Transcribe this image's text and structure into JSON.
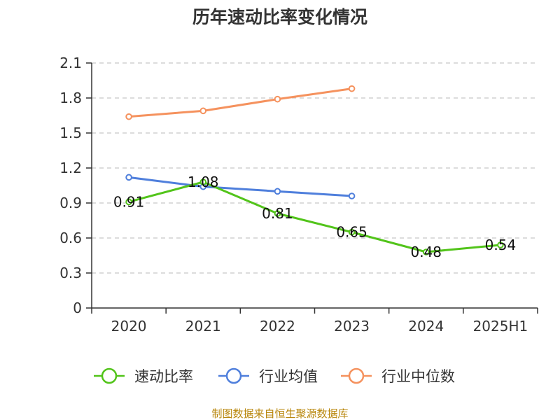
{
  "chart_data": {
    "type": "line",
    "title": "历年速动比率变化情况",
    "categories": [
      "2020",
      "2021",
      "2022",
      "2023",
      "2024",
      "2025H1"
    ],
    "ylim": [
      0,
      2.1
    ],
    "yticks": [
      "0",
      "0.3",
      "0.6",
      "0.9",
      "1.2",
      "1.5",
      "1.8",
      "2.1"
    ],
    "grid": true,
    "legend_position": "bottom",
    "series": [
      {
        "name": "速动比率",
        "color": "#52c41a",
        "values": [
          0.91,
          1.08,
          0.81,
          0.65,
          0.48,
          0.54
        ],
        "labels": [
          "0.91",
          "1.08",
          "0.81",
          "0.65",
          "0.48",
          "0.54"
        ],
        "show_labels": true
      },
      {
        "name": "行业均值",
        "color": "#4f7fdc",
        "values": [
          1.12,
          1.04,
          1.0,
          0.96,
          null,
          null
        ],
        "show_labels": false
      },
      {
        "name": "行业中位数",
        "color": "#f5925e",
        "values": [
          1.64,
          1.69,
          1.79,
          1.88,
          null,
          null
        ],
        "show_labels": false
      }
    ]
  },
  "source_text": "制图数据来自恒生聚源数据库"
}
